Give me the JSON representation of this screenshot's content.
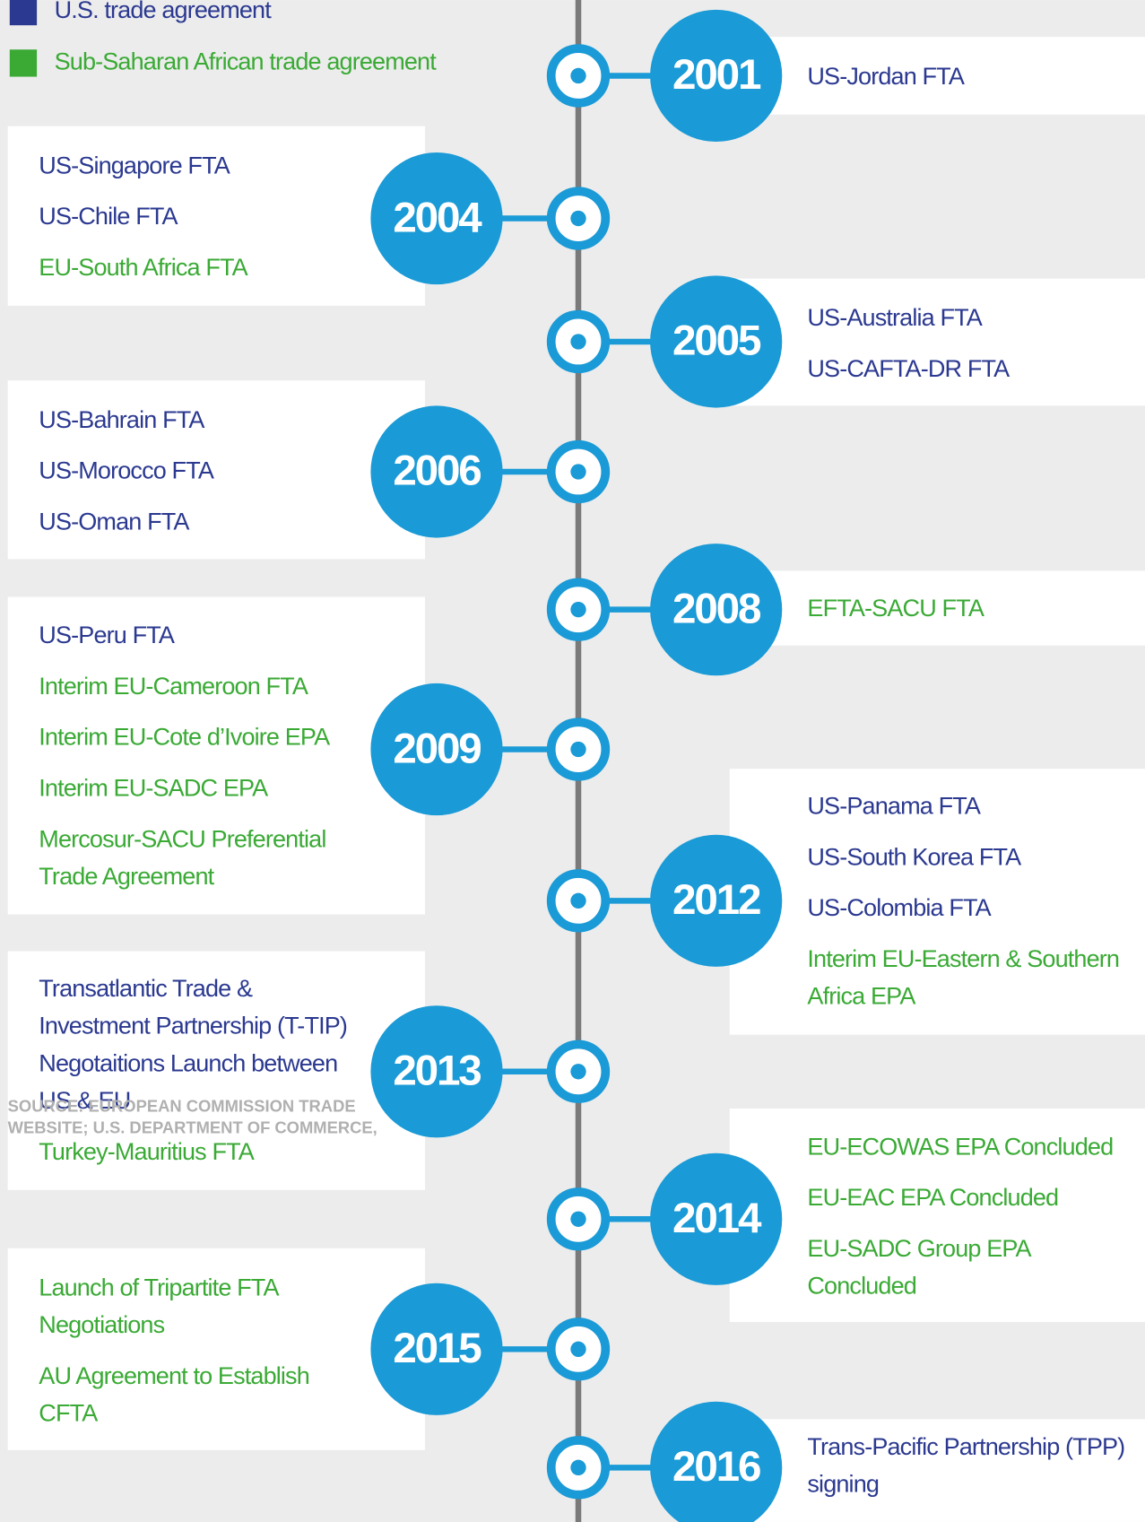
{
  "legend": [
    {
      "label": "U.S. trade agreement",
      "color": "#2b3990"
    },
    {
      "label": "Sub-Saharan African trade agreement",
      "color": "#3aaa35"
    }
  ],
  "events": [
    {
      "year": "2001",
      "side": "right",
      "items": [
        {
          "lines": [
            "US-Jordan FTA"
          ],
          "color": "#2b3990"
        }
      ]
    },
    {
      "year": "2004",
      "side": "left",
      "items": [
        {
          "lines": [
            "US-Singapore FTA"
          ],
          "color": "#2b3990"
        },
        {
          "lines": [
            "US-Chile FTA"
          ],
          "color": "#2b3990"
        },
        {
          "lines": [
            "EU-South Africa FTA"
          ],
          "color": "#3aaa35"
        }
      ]
    },
    {
      "year": "2005",
      "side": "right",
      "items": [
        {
          "lines": [
            "US-Australia FTA"
          ],
          "color": "#2b3990"
        },
        {
          "lines": [
            "US-CAFTA-DR FTA"
          ],
          "color": "#2b3990"
        }
      ]
    },
    {
      "year": "2006",
      "side": "left",
      "items": [
        {
          "lines": [
            "US-Bahrain FTA"
          ],
          "color": "#2b3990"
        },
        {
          "lines": [
            "US-Morocco FTA"
          ],
          "color": "#2b3990"
        },
        {
          "lines": [
            "US-Oman FTA"
          ],
          "color": "#2b3990"
        }
      ]
    },
    {
      "year": "2008",
      "side": "right",
      "items": [
        {
          "lines": [
            "EFTA-SACU FTA"
          ],
          "color": "#3aaa35"
        }
      ]
    },
    {
      "year": "2009",
      "side": "left",
      "items": [
        {
          "lines": [
            "US-Peru FTA"
          ],
          "color": "#2b3990"
        },
        {
          "lines": [
            "Interim EU-Cameroon FTA"
          ],
          "color": "#3aaa35"
        },
        {
          "lines": [
            "Interim EU-Cote d’Ivoire EPA"
          ],
          "color": "#3aaa35"
        },
        {
          "lines": [
            "Interim EU-SADC EPA"
          ],
          "color": "#3aaa35"
        },
        {
          "lines": [
            "Mercosur-SACU Preferential",
            "Trade Agreement"
          ],
          "color": "#3aaa35"
        }
      ]
    },
    {
      "year": "2012",
      "side": "right",
      "items": [
        {
          "lines": [
            "US-Panama FTA"
          ],
          "color": "#2b3990"
        },
        {
          "lines": [
            "US-South Korea FTA"
          ],
          "color": "#2b3990"
        },
        {
          "lines": [
            "US-Colombia FTA"
          ],
          "color": "#2b3990"
        },
        {
          "lines": [
            "Interim EU-Eastern & Southern",
            "Africa EPA"
          ],
          "color": "#3aaa35"
        }
      ]
    },
    {
      "year": "2013",
      "side": "left",
      "items": [
        {
          "lines": [
            "Transatlantic Trade &",
            "Investment Partnership (T-TIP)",
            "Negotaitions Launch between",
            "US & EU"
          ],
          "color": "#2b3990"
        },
        {
          "lines": [
            "Turkey-Mauritius FTA"
          ],
          "color": "#3aaa35"
        }
      ]
    },
    {
      "year": "2014",
      "side": "right",
      "items": [
        {
          "lines": [
            "EU-ECOWAS EPA Concluded"
          ],
          "color": "#3aaa35"
        },
        {
          "lines": [
            "EU-EAC EPA Concluded"
          ],
          "color": "#3aaa35"
        },
        {
          "lines": [
            "EU-SADC Group EPA",
            "Concluded"
          ],
          "color": "#3aaa35"
        }
      ]
    },
    {
      "year": "2015",
      "side": "left",
      "items": [
        {
          "lines": [
            "Launch of Tripartite FTA",
            "Negotiations"
          ],
          "color": "#3aaa35"
        },
        {
          "lines": [
            "AU Agreement to Establish",
            "CFTA"
          ],
          "color": "#3aaa35"
        }
      ]
    },
    {
      "year": "2016",
      "side": "right",
      "items": [
        {
          "lines": [
            "Trans-Pacific Partnership (TPP)",
            "signing"
          ],
          "color": "#2b3990"
        }
      ]
    }
  ],
  "source": [
    "SOURCE: EUROPEAN COMMISSION TRADE",
    "WEBSITE; U.S. DEPARTMENT OF COMMERCE,"
  ]
}
